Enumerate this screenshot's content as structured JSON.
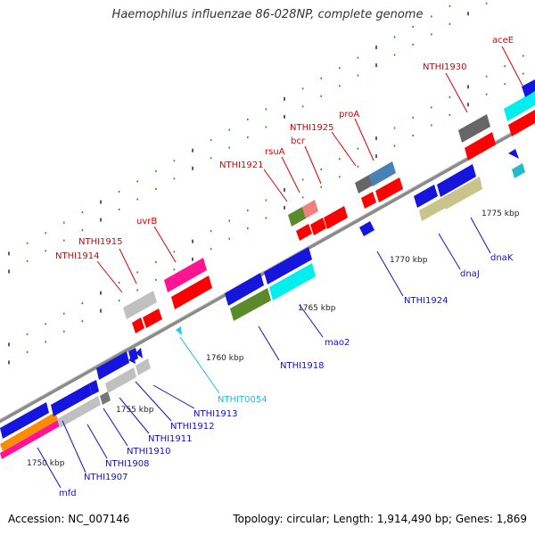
{
  "title": "Haemophilus influenzae 86-028NP, complete genome",
  "footer": {
    "accession": "Accession: NC_007146",
    "summary": "Topology: circular; Length: 1,914,490 bp; Genes: 1,869"
  },
  "colors": {
    "backbone": "#8a8a8a",
    "tick_minor": "#2e8b2e",
    "tick_major": "#333333",
    "label_forward": "#dd0000",
    "label_reverse": "#1010cc",
    "label_rna": "#22bbdd"
  },
  "scale_labels": [
    "1750 kbp",
    "1755 kbp",
    "1760 kbp",
    "1765 kbp",
    "1770 kbp",
    "1775 kbp"
  ],
  "gene_labels": [
    "mfd",
    "NTHI1907",
    "NTHI1908",
    "NTHI1910",
    "NTHI1911",
    "NTHI1912",
    "NTHI1913",
    "NTHIT0054",
    "NTHI1918",
    "mao2",
    "NTHI1924",
    "dnaJ",
    "dnaK",
    "NTHI1914",
    "NTHI1915",
    "uvrB",
    "NTHI1921",
    "rsuA",
    "bcr",
    "NTHI1925",
    "proA",
    "NTHI1930",
    "aceE"
  ]
}
